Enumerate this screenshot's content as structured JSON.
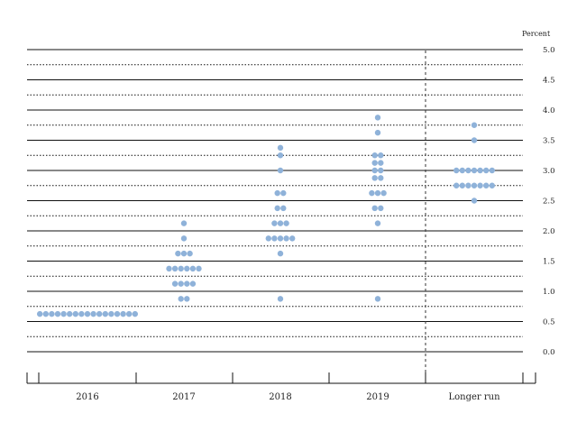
{
  "chart_data": {
    "type": "scatter",
    "title": "",
    "y_unit_label": "Percent",
    "categories": [
      "2016",
      "2017",
      "2018",
      "2019",
      "Longer run"
    ],
    "y_ticks": [
      "5.0",
      "4.5",
      "4.0",
      "3.5",
      "3.0",
      "2.5",
      "2.0",
      "1.5",
      "1.0",
      "0.5",
      "0.0"
    ],
    "ylim": [
      0,
      5
    ],
    "grid_step": 0.25,
    "dot_color": "#8fb2d9",
    "divider_before_category": "Longer run",
    "points": [
      {
        "x": "2016",
        "y": 0.625,
        "count": 17
      },
      {
        "x": "2017",
        "y": 2.125,
        "count": 1
      },
      {
        "x": "2017",
        "y": 1.875,
        "count": 1
      },
      {
        "x": "2017",
        "y": 1.625,
        "count": 3
      },
      {
        "x": "2017",
        "y": 1.375,
        "count": 6
      },
      {
        "x": "2017",
        "y": 1.125,
        "count": 4
      },
      {
        "x": "2017",
        "y": 0.875,
        "count": 2
      },
      {
        "x": "2018",
        "y": 3.375,
        "count": 1
      },
      {
        "x": "2018",
        "y": 3.25,
        "count": 1
      },
      {
        "x": "2018",
        "y": 3.0,
        "count": 1
      },
      {
        "x": "2018",
        "y": 2.625,
        "count": 2
      },
      {
        "x": "2018",
        "y": 2.375,
        "count": 2
      },
      {
        "x": "2018",
        "y": 2.125,
        "count": 3
      },
      {
        "x": "2018",
        "y": 1.875,
        "count": 5
      },
      {
        "x": "2018",
        "y": 1.625,
        "count": 1
      },
      {
        "x": "2018",
        "y": 0.875,
        "count": 1
      },
      {
        "x": "2019",
        "y": 3.875,
        "count": 1
      },
      {
        "x": "2019",
        "y": 3.625,
        "count": 1
      },
      {
        "x": "2019",
        "y": 3.25,
        "count": 2
      },
      {
        "x": "2019",
        "y": 3.125,
        "count": 2
      },
      {
        "x": "2019",
        "y": 3.0,
        "count": 2
      },
      {
        "x": "2019",
        "y": 2.875,
        "count": 2
      },
      {
        "x": "2019",
        "y": 2.625,
        "count": 3
      },
      {
        "x": "2019",
        "y": 2.375,
        "count": 2
      },
      {
        "x": "2019",
        "y": 2.125,
        "count": 1
      },
      {
        "x": "2019",
        "y": 0.875,
        "count": 1
      },
      {
        "x": "Longer run",
        "y": 3.75,
        "count": 1
      },
      {
        "x": "Longer run",
        "y": 3.5,
        "count": 1
      },
      {
        "x": "Longer run",
        "y": 3.0,
        "count": 7
      },
      {
        "x": "Longer run",
        "y": 2.75,
        "count": 7
      },
      {
        "x": "Longer run",
        "y": 2.5,
        "count": 1
      }
    ]
  }
}
